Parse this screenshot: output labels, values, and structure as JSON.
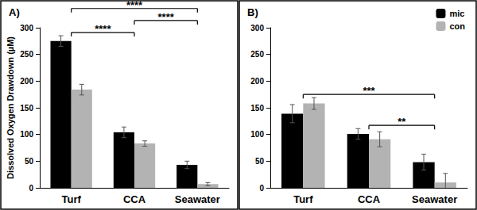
{
  "chart_data": [
    {
      "type": "bar",
      "title": "A)",
      "ylabel": "Dissolved Oxygen Drawdown (µM)",
      "categories": [
        "Turf",
        "CCA",
        "Seawater"
      ],
      "series": [
        {
          "name": "mic",
          "color": "#000000",
          "values": [
            275,
            104,
            43
          ],
          "errors": [
            10,
            10,
            7
          ]
        },
        {
          "name": "con",
          "color": "#b3b3b3",
          "values": [
            184,
            83,
            7
          ],
          "errors": [
            10,
            5,
            3
          ]
        }
      ],
      "ylim": [
        0,
        300
      ],
      "yticks": [
        0,
        50,
        100,
        150,
        200,
        250,
        300
      ],
      "grid": false,
      "brackets": [
        {
          "from": "Turf",
          "to": "Seawater",
          "label": "****"
        },
        {
          "from": "Turf",
          "to": "CCA",
          "label": "****"
        },
        {
          "from": "CCA",
          "to": "Seawater",
          "label": "****"
        }
      ]
    },
    {
      "type": "bar",
      "title": "B)",
      "categories": [
        "Turf",
        "CCA",
        "Seawater"
      ],
      "series": [
        {
          "name": "mic",
          "color": "#000000",
          "values": [
            139,
            101,
            48
          ],
          "errors": [
            17,
            10,
            15
          ]
        },
        {
          "name": "con",
          "color": "#b3b3b3",
          "values": [
            158,
            91,
            10
          ],
          "errors": [
            11,
            14,
            17
          ]
        }
      ],
      "ylim": [
        0,
        300
      ],
      "yticks": [
        0,
        50,
        100,
        150,
        200,
        250,
        300
      ],
      "grid": false,
      "legend": "upper right",
      "brackets": [
        {
          "from": "Turf",
          "to": "Seawater",
          "label": "***"
        },
        {
          "from": "CCA",
          "to": "Seawater",
          "label": "**"
        }
      ]
    }
  ]
}
